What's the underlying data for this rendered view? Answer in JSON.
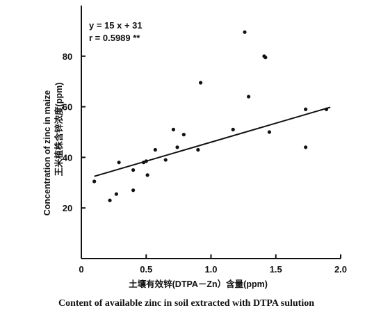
{
  "chart_data": {
    "type": "scatter",
    "title": "",
    "xlabel_cn": "土壤有效锌(DTPA－Zn）含量(ppm)",
    "xlabel_en": "Content of available zinc in soil extracted with DTPA sulution",
    "ylabel_en": "Concentration of zinc in maize",
    "ylabel_cn": "王米植株含锌浓度(ppm)",
    "xlim": [
      0,
      2.0
    ],
    "ylim": [
      0,
      100
    ],
    "x_ticks": [
      {
        "value": 0,
        "label": "0"
      },
      {
        "value": 0.5,
        "label": "0.5"
      },
      {
        "value": 1.0,
        "label": "1.0"
      },
      {
        "value": 1.5,
        "label": "1.5"
      },
      {
        "value": 2.0,
        "label": "2.0"
      }
    ],
    "y_ticks": [
      {
        "value": 20,
        "label": "20"
      },
      {
        "value": 40,
        "label": "40"
      },
      {
        "value": 60,
        "label": "60"
      },
      {
        "value": 80,
        "label": "80"
      }
    ],
    "grid": false,
    "regression": {
      "equation": "y = 15 x + 31",
      "r_text": "r = 0.5989 **",
      "slope": 15,
      "intercept": 31,
      "x_range": [
        0.1,
        1.92
      ]
    },
    "points": [
      {
        "x": 0.1,
        "y": 30.5
      },
      {
        "x": 0.22,
        "y": 23.0
      },
      {
        "x": 0.27,
        "y": 25.5
      },
      {
        "x": 0.29,
        "y": 38.0
      },
      {
        "x": 0.4,
        "y": 35.0
      },
      {
        "x": 0.4,
        "y": 27.0
      },
      {
        "x": 0.48,
        "y": 38.0
      },
      {
        "x": 0.5,
        "y": 38.5
      },
      {
        "x": 0.51,
        "y": 33.0
      },
      {
        "x": 0.57,
        "y": 43.0
      },
      {
        "x": 0.65,
        "y": 39.0
      },
      {
        "x": 0.71,
        "y": 51.0
      },
      {
        "x": 0.74,
        "y": 44.0
      },
      {
        "x": 0.79,
        "y": 49.0
      },
      {
        "x": 0.9,
        "y": 43.0
      },
      {
        "x": 0.92,
        "y": 69.5
      },
      {
        "x": 1.17,
        "y": 51.0
      },
      {
        "x": 1.26,
        "y": 89.5
      },
      {
        "x": 1.29,
        "y": 64.0
      },
      {
        "x": 1.41,
        "y": 80.0
      },
      {
        "x": 1.42,
        "y": 79.5
      },
      {
        "x": 1.45,
        "y": 50.0
      },
      {
        "x": 1.73,
        "y": 59.0
      },
      {
        "x": 1.73,
        "y": 44.0
      },
      {
        "x": 1.89,
        "y": 59.0
      }
    ]
  }
}
